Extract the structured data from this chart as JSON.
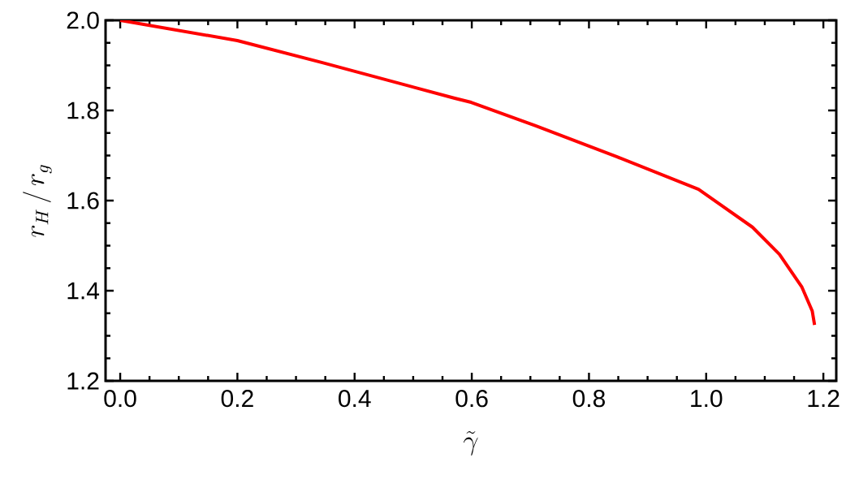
{
  "chart_data": {
    "type": "line",
    "xlabel": "\\tilde{\\gamma}",
    "ylabel": "r_H\\,/\\,r_g",
    "xlim": [
      -0.025,
      1.222
    ],
    "ylim": [
      1.2,
      2.0
    ],
    "xticks": [
      {
        "value": 0,
        "label": "0.0"
      },
      0.2,
      0.4,
      0.6,
      0.8,
      {
        "value": 1,
        "label": "1.0"
      },
      1.2
    ],
    "yticks": [
      1.2,
      1.4,
      1.6,
      1.8,
      {
        "value": 2,
        "label": "2.0"
      }
    ],
    "marker": "none",
    "line_style": "solid",
    "series": [
      {
        "color": "#ff0000",
        "x": [
          0,
          0.2,
          0.345,
          0.571,
          0.599,
          0.709,
          0.848,
          0.987,
          1.079,
          1.125,
          1.163,
          1.181,
          1.185
        ],
        "values": [
          2.0,
          1.955,
          1.906,
          1.827,
          1.818,
          1.766,
          1.697,
          1.625,
          1.541,
          1.481,
          1.409,
          1.355,
          1.324
        ]
      }
    ]
  }
}
